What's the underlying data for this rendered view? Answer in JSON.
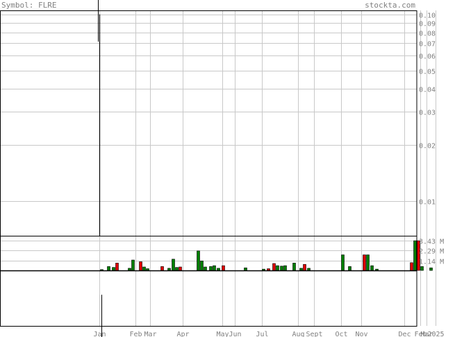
{
  "header": {
    "symbol_label": "Symbol: FLRE",
    "site_label": "stockta.com"
  },
  "colors": {
    "grid": "#c8c8c8",
    "axis_text": "#808080",
    "frame": "#000000",
    "up_bar": "#008000",
    "down_bar": "#e00000",
    "bar_outline": "#000000"
  },
  "chart_data": [
    {
      "type": "line",
      "scale": "log",
      "ylim": [
        0.0065,
        0.105
      ],
      "y_ticks": [
        {
          "value": 0.1,
          "label": "0.10"
        },
        {
          "value": 0.09,
          "label": "0.09"
        },
        {
          "value": 0.08,
          "label": "0.08"
        },
        {
          "value": 0.07,
          "label": "0.07"
        },
        {
          "value": 0.06,
          "label": "0.06"
        },
        {
          "value": 0.05,
          "label": "0.05"
        },
        {
          "value": 0.04,
          "label": "0.04"
        },
        {
          "value": 0.03,
          "label": "0.03"
        },
        {
          "value": 0.02,
          "label": "0.02"
        },
        {
          "value": 0.01,
          "label": "0.01"
        }
      ],
      "series": [
        {
          "x": [
            "Jan",
            "Jan"
          ],
          "y": [
            0.1,
            0.0065
          ]
        }
      ],
      "grid": true
    },
    {
      "type": "bar",
      "ylim": [
        0,
        4.0
      ],
      "y_unit": "M",
      "y_ticks": [
        {
          "value": 3.43,
          "label": "3.43 M"
        },
        {
          "value": 2.29,
          "label": "2.29 M"
        },
        {
          "value": 1.14,
          "label": "1.14 M"
        }
      ],
      "x_month_labels": [
        {
          "label": "Jan",
          "pos": 0.0
        },
        {
          "label": "Feb",
          "pos": 1.0
        },
        {
          "label": "Mar",
          "pos": 1.4
        },
        {
          "label": "Apr",
          "pos": 2.3
        },
        {
          "label": "May",
          "pos": 3.4
        },
        {
          "label": "Jun",
          "pos": 3.75
        },
        {
          "label": "Jul",
          "pos": 4.5
        },
        {
          "label": "Aug",
          "pos": 5.5
        },
        {
          "label": "Sept",
          "pos": 5.95
        },
        {
          "label": "Oct",
          "pos": 6.7
        },
        {
          "label": "Nov",
          "pos": 7.25
        },
        {
          "label": "Dec",
          "pos": 8.45
        },
        {
          "label": "Feb",
          "pos": 8.88
        },
        {
          "label": "Mar",
          "pos": 9.05
        },
        {
          "label": "2025",
          "pos": 9.3
        }
      ],
      "bars": [
        {
          "x": 0.05,
          "v": 0.1,
          "dir": "up"
        },
        {
          "x": 0.25,
          "v": 0.45,
          "dir": "up"
        },
        {
          "x": 0.38,
          "v": 0.35,
          "dir": "up"
        },
        {
          "x": 0.48,
          "v": 0.85,
          "dir": "down"
        },
        {
          "x": 0.83,
          "v": 0.25,
          "dir": "up"
        },
        {
          "x": 0.93,
          "v": 1.2,
          "dir": "up"
        },
        {
          "x": 1.13,
          "v": 1.0,
          "dir": "down"
        },
        {
          "x": 1.23,
          "v": 0.4,
          "dir": "up"
        },
        {
          "x": 1.33,
          "v": 0.2,
          "dir": "up"
        },
        {
          "x": 1.73,
          "v": 0.45,
          "dir": "down"
        },
        {
          "x": 1.93,
          "v": 0.25,
          "dir": "up"
        },
        {
          "x": 2.03,
          "v": 1.3,
          "dir": "up"
        },
        {
          "x": 2.13,
          "v": 0.35,
          "dir": "up"
        },
        {
          "x": 2.23,
          "v": 0.4,
          "dir": "down"
        },
        {
          "x": 2.73,
          "v": 2.25,
          "dir": "up"
        },
        {
          "x": 2.83,
          "v": 1.1,
          "dir": "up"
        },
        {
          "x": 2.93,
          "v": 0.4,
          "dir": "up"
        },
        {
          "x": 3.08,
          "v": 0.45,
          "dir": "up"
        },
        {
          "x": 3.18,
          "v": 0.55,
          "dir": "up"
        },
        {
          "x": 3.28,
          "v": 0.25,
          "dir": "up"
        },
        {
          "x": 3.43,
          "v": 0.55,
          "dir": "down"
        },
        {
          "x": 4.03,
          "v": 0.3,
          "dir": "up"
        },
        {
          "x": 4.53,
          "v": 0.15,
          "dir": "up"
        },
        {
          "x": 4.68,
          "v": 0.2,
          "dir": "down"
        },
        {
          "x": 4.83,
          "v": 0.8,
          "dir": "down"
        },
        {
          "x": 4.93,
          "v": 0.55,
          "dir": "up"
        },
        {
          "x": 5.03,
          "v": 0.5,
          "dir": "up"
        },
        {
          "x": 5.13,
          "v": 0.55,
          "dir": "up"
        },
        {
          "x": 5.38,
          "v": 0.85,
          "dir": "up"
        },
        {
          "x": 5.58,
          "v": 0.25,
          "dir": "up"
        },
        {
          "x": 5.68,
          "v": 0.7,
          "dir": "down"
        },
        {
          "x": 5.78,
          "v": 0.25,
          "dir": "up"
        },
        {
          "x": 6.73,
          "v": 1.8,
          "dir": "up"
        },
        {
          "x": 6.93,
          "v": 0.45,
          "dir": "up"
        },
        {
          "x": 7.33,
          "v": 1.8,
          "dir": "down"
        },
        {
          "x": 7.43,
          "v": 1.8,
          "dir": "up"
        },
        {
          "x": 7.53,
          "v": 0.55,
          "dir": "up"
        },
        {
          "x": 7.68,
          "v": 0.15,
          "dir": "up"
        },
        {
          "x": 8.63,
          "v": 0.9,
          "dir": "down"
        },
        {
          "x": 8.73,
          "v": 3.43,
          "dir": "up"
        },
        {
          "x": 8.83,
          "v": 3.43,
          "dir": "down"
        },
        {
          "x": 8.93,
          "v": 0.45,
          "dir": "up"
        },
        {
          "x": 9.18,
          "v": 0.3,
          "dir": "up"
        }
      ],
      "grid": true
    }
  ]
}
